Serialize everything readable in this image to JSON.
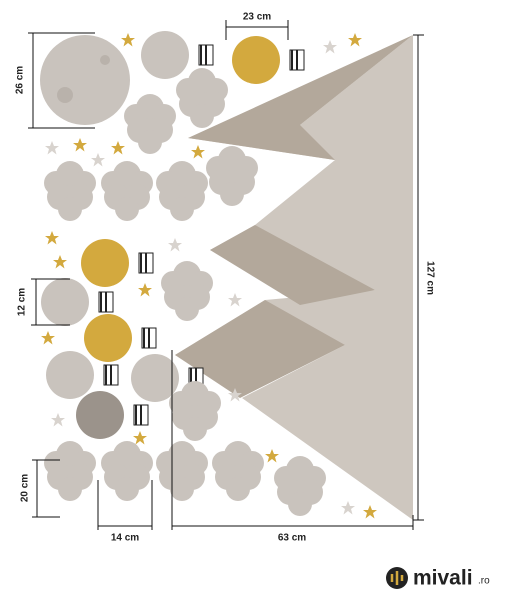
{
  "dimensions": {
    "balloon_width": "23 cm",
    "moon_height": "26 cm",
    "small_balloon_height": "12 cm",
    "mountain_height": "127 cm",
    "cloud_height": "20 cm",
    "cloud_width": "14 cm",
    "mountain_width": "63 cm"
  },
  "logo": {
    "name": "mivali",
    "tld": ".ro"
  }
}
